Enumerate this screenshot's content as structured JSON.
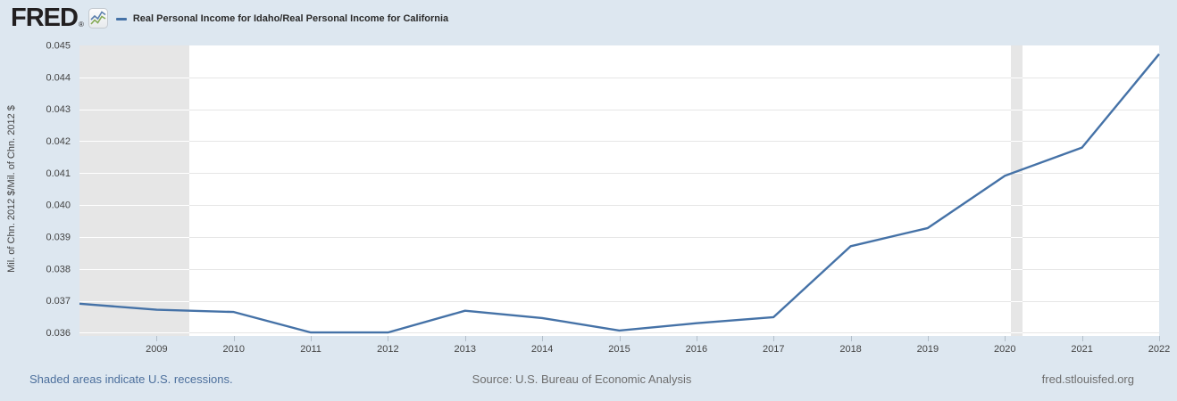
{
  "header": {
    "logo_text": "FRED",
    "registered_mark": "®",
    "legend_label": "Real Personal Income for Idaho/Real Personal Income for California"
  },
  "footer": {
    "recession_note": "Shaded areas indicate U.S. recessions.",
    "source": "Source: U.S. Bureau of Economic Analysis",
    "site": "fred.stlouisfed.org"
  },
  "colors": {
    "page_bg": "#dde7f0",
    "plot_bg": "#ffffff",
    "grid": "#e6e6e6",
    "grid_on_band": "#ffffff",
    "recession_band": "#e6e6e6",
    "line": "#4572a7",
    "tick_text": "#444444",
    "axis_title_text": "#444444",
    "tick_mark": "#b3bfca",
    "legend_text": "#2b2b2b",
    "logo_text": "#221f20",
    "logo_icon_line_blue": "#5b7fad",
    "logo_icon_line_green": "#86ab58",
    "footer_link": "#4c6f9c",
    "footer_text": "#6e6e6e"
  },
  "chart_data": {
    "type": "line",
    "title": "Real Personal Income for Idaho/Real Personal Income for California",
    "xlabel": "",
    "ylabel": "Mil. of Chn. 2012 $/Mil. of Chn. 2012 $",
    "x": [
      2008,
      2009,
      2010,
      2011,
      2012,
      2013,
      2014,
      2015,
      2016,
      2017,
      2018,
      2019,
      2020,
      2021,
      2022
    ],
    "values": [
      0.03691,
      0.03672,
      0.03665,
      0.03601,
      0.03601,
      0.03669,
      0.03646,
      0.03607,
      0.0363,
      0.03649,
      0.03871,
      0.03928,
      0.04092,
      0.0418,
      0.04473
    ],
    "x_ticks": [
      2009,
      2010,
      2011,
      2012,
      2013,
      2014,
      2015,
      2016,
      2017,
      2018,
      2019,
      2020,
      2021,
      2022
    ],
    "y_ticks": [
      0.036,
      0.037,
      0.038,
      0.039,
      0.04,
      0.041,
      0.042,
      0.043,
      0.044,
      0.045
    ],
    "xlim": [
      2008,
      2022
    ],
    "ylim": [
      0.0359,
      0.045
    ],
    "grid": true,
    "legend_position": "top-left",
    "recessions": [
      {
        "start": 2008.0,
        "end": 2009.42
      },
      {
        "start": 2020.08,
        "end": 2020.23
      }
    ]
  }
}
